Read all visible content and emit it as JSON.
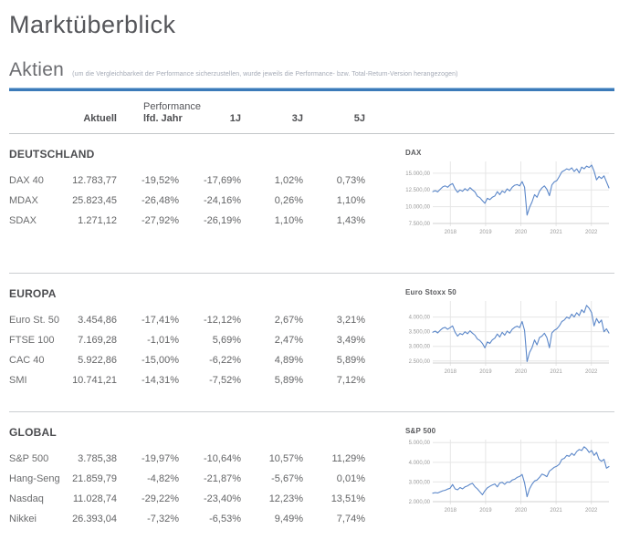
{
  "page": {
    "title": "Marktüberblick",
    "section_title": "Aktien",
    "section_note": "(um die Vergleichbarkeit der Performance sicherzustellen, wurde jeweils die Performance- bzw. Total-Return-Version herangezogen)"
  },
  "table": {
    "header_group": "Performance",
    "columns": [
      "Aktuell",
      "lfd. Jahr",
      "1J",
      "3J",
      "5J"
    ],
    "sections": [
      {
        "name": "DEUTSCHLAND",
        "rows": [
          {
            "label": "DAX 40",
            "values": [
              "12.783,77",
              "-19,52%",
              "-17,69%",
              "1,02%",
              "0,73%"
            ]
          },
          {
            "label": "MDAX",
            "values": [
              "25.823,45",
              "-26,48%",
              "-24,16%",
              "0,26%",
              "1,10%"
            ]
          },
          {
            "label": "SDAX",
            "values": [
              "1.271,12",
              "-27,92%",
              "-26,19%",
              "1,10%",
              "1,43%"
            ]
          }
        ]
      },
      {
        "name": "EUROPA",
        "rows": [
          {
            "label": "Euro St. 50",
            "values": [
              "3.454,86",
              "-17,41%",
              "-12,12%",
              "2,67%",
              "3,21%"
            ]
          },
          {
            "label": "FTSE 100",
            "values": [
              "7.169,28",
              "-1,01%",
              "5,69%",
              "2,47%",
              "3,49%"
            ]
          },
          {
            "label": "CAC 40",
            "values": [
              "5.922,86",
              "-15,00%",
              "-6,22%",
              "4,89%",
              "5,89%"
            ]
          },
          {
            "label": "SMI",
            "values": [
              "10.741,21",
              "-14,31%",
              "-7,52%",
              "5,89%",
              "7,12%"
            ]
          }
        ]
      },
      {
        "name": "GLOBAL",
        "rows": [
          {
            "label": "S&P 500",
            "values": [
              "3.785,38",
              "-19,97%",
              "-10,64%",
              "10,57%",
              "11,29%"
            ]
          },
          {
            "label": "Hang-Seng",
            "values": [
              "21.859,79",
              "-4,82%",
              "-21,87%",
              "-5,67%",
              "0,01%"
            ]
          },
          {
            "label": "Nasdaq",
            "values": [
              "11.028,74",
              "-29,22%",
              "-23,40%",
              "12,23%",
              "13,51%"
            ]
          },
          {
            "label": "Nikkei",
            "values": [
              "26.393,04",
              "-7,32%",
              "-6,53%",
              "9,49%",
              "7,74%"
            ]
          }
        ]
      }
    ]
  },
  "chart_data": [
    {
      "type": "line",
      "title": "DAX",
      "legend": "none",
      "grid": true,
      "ylim": [
        7500,
        16750
      ],
      "yticks": [
        {
          "value": 15000,
          "label": "15.000,00"
        },
        {
          "value": 12500,
          "label": "12.500,00"
        },
        {
          "value": 10000,
          "label": "10.000,00"
        },
        {
          "value": 7500,
          "label": "7.500,00"
        }
      ],
      "xticks": [
        {
          "pos": 0.1,
          "label": "2018"
        },
        {
          "pos": 0.3,
          "label": "2019"
        },
        {
          "pos": 0.5,
          "label": "2020"
        },
        {
          "pos": 0.7,
          "label": "2021"
        },
        {
          "pos": 0.9,
          "label": "2022"
        }
      ],
      "values": [
        12250,
        12400,
        12200,
        12600,
        12950,
        13100,
        12900,
        13250,
        13450,
        12650,
        12150,
        12500,
        12300,
        12700,
        12400,
        12850,
        12500,
        12200,
        11550,
        11350,
        10900,
        10500,
        11250,
        11050,
        11400,
        11600,
        12250,
        11800,
        12350,
        12100,
        12650,
        12350,
        12900,
        13200,
        13300,
        13100,
        13750,
        12900,
        8750,
        9900,
        10700,
        11800,
        11400,
        12300,
        12800,
        13100,
        12600,
        11650,
        13250,
        13700,
        13900,
        14500,
        15200,
        15400,
        15650,
        15500,
        15800,
        15250,
        15650,
        15050,
        15900,
        15650,
        16050,
        15850,
        16200,
        15300,
        14000,
        14500,
        14200,
        14600,
        13700,
        12800
      ]
    },
    {
      "type": "line",
      "title": "Euro Stoxx 50",
      "legend": "none",
      "grid": true,
      "ylim": [
        2430,
        4550
      ],
      "yticks": [
        {
          "value": 4000,
          "label": "4.000,00"
        },
        {
          "value": 3500,
          "label": "3.500,00"
        },
        {
          "value": 3000,
          "label": "3.000,00"
        },
        {
          "value": 2500,
          "label": "2.500,00"
        }
      ],
      "xticks": [
        {
          "pos": 0.1,
          "label": "2018"
        },
        {
          "pos": 0.3,
          "label": "2019"
        },
        {
          "pos": 0.5,
          "label": "2020"
        },
        {
          "pos": 0.7,
          "label": "2021"
        },
        {
          "pos": 0.9,
          "label": "2022"
        }
      ],
      "values": [
        3480,
        3520,
        3460,
        3550,
        3620,
        3650,
        3580,
        3640,
        3700,
        3480,
        3350,
        3440,
        3400,
        3500,
        3430,
        3530,
        3450,
        3380,
        3250,
        3200,
        3100,
        2950,
        3150,
        3100,
        3220,
        3280,
        3420,
        3320,
        3480,
        3380,
        3520,
        3450,
        3580,
        3650,
        3690,
        3640,
        3850,
        3540,
        2480,
        2790,
        2950,
        3220,
        3050,
        3300,
        3350,
        3450,
        3300,
        2950,
        3460,
        3550,
        3600,
        3700,
        3850,
        3900,
        4000,
        3950,
        4100,
        4000,
        4150,
        4050,
        4250,
        4150,
        4400,
        4300,
        4150,
        3700,
        3950,
        3800,
        3900,
        3500,
        3600,
        3455
      ]
    },
    {
      "type": "line",
      "title": "S&P 500",
      "legend": "none",
      "grid": true,
      "ylim": [
        2000,
        5150
      ],
      "yticks": [
        {
          "value": 5000,
          "label": "5.000,00"
        },
        {
          "value": 4000,
          "label": "4.000,00"
        },
        {
          "value": 3000,
          "label": "3.000,00"
        },
        {
          "value": 2000,
          "label": "2.000,00"
        }
      ],
      "xticks": [
        {
          "pos": 0.1,
          "label": "2018"
        },
        {
          "pos": 0.3,
          "label": "2019"
        },
        {
          "pos": 0.5,
          "label": "2020"
        },
        {
          "pos": 0.7,
          "label": "2021"
        },
        {
          "pos": 0.9,
          "label": "2022"
        }
      ],
      "values": [
        2430,
        2460,
        2440,
        2500,
        2550,
        2580,
        2640,
        2680,
        2870,
        2650,
        2600,
        2720,
        2650,
        2750,
        2800,
        2880,
        2930,
        2760,
        2650,
        2500,
        2350,
        2550,
        2700,
        2780,
        2850,
        2900,
        2750,
        2950,
        2980,
        2880,
        3000,
        2980,
        3100,
        3140,
        3230,
        3280,
        3380,
        2950,
        2250,
        2650,
        2880,
        3050,
        3100,
        3230,
        3400,
        3350,
        3270,
        3550,
        3650,
        3750,
        3800,
        3900,
        4150,
        4200,
        4350,
        4300,
        4450,
        4350,
        4550,
        4650,
        4600,
        4790,
        4680,
        4500,
        4600,
        4350,
        4500,
        4150,
        4050,
        4150,
        3700,
        3785
      ]
    }
  ],
  "colors": {
    "accent_blue": "#3B7AB9",
    "chart_line": "#5B87C9",
    "grid_line": "#E6E6E6",
    "axis_line": "#D2D2D2",
    "tick_text": "#9A9A9A",
    "divider": "#CBCED1",
    "text_primary": "#58595B"
  }
}
